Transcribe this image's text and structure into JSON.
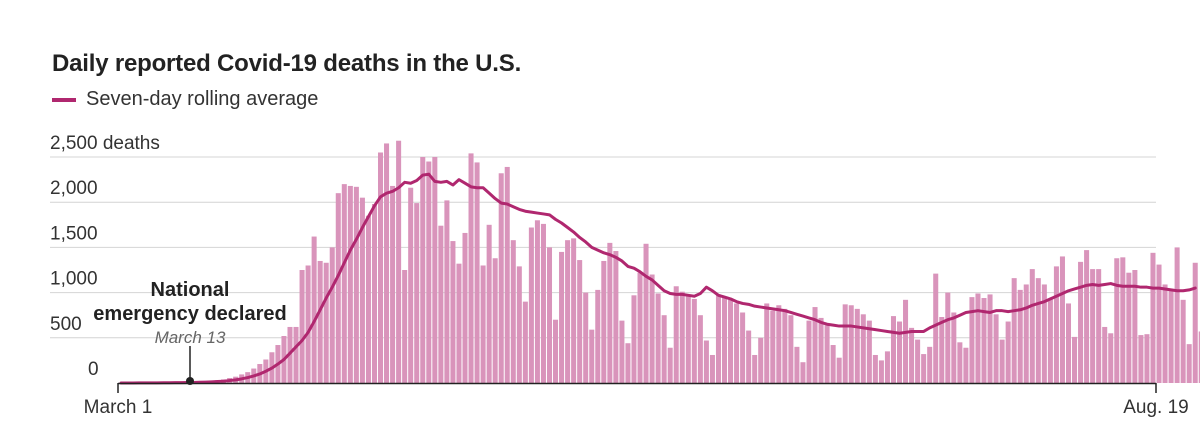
{
  "chart_data": {
    "type": "bar",
    "title": "Daily reported Covid-19 deaths in the U.S.",
    "legend": [
      {
        "name": "Seven-day rolling average",
        "color": "#b0276f"
      }
    ],
    "y_unit": "deaths",
    "ylim": [
      0,
      2500
    ],
    "y_ticks": [
      {
        "value": 2500,
        "label": "2,500 deaths"
      },
      {
        "value": 2000,
        "label": "2,000"
      },
      {
        "value": 1500,
        "label": "1,500"
      },
      {
        "value": 1000,
        "label": "1,000"
      },
      {
        "value": 500,
        "label": "500"
      },
      {
        "value": 0,
        "label": "0"
      }
    ],
    "x_range": [
      "2020-03-01",
      "2020-08-19"
    ],
    "x_ticks": [
      {
        "date": "2020-03-01",
        "label": "March 1"
      },
      {
        "date": "2020-08-19",
        "label": "Aug. 19"
      }
    ],
    "annotation": {
      "date": "2020-03-13",
      "title_lines": [
        "National",
        "emergency declared"
      ],
      "subtitle": "March 13"
    },
    "bar_color": "#d994bb",
    "line_color": "#b0276f",
    "grid": true,
    "series": [
      {
        "name": "Daily deaths",
        "kind": "bar",
        "start_date": "2020-03-01",
        "values": [
          0,
          0,
          1,
          2,
          2,
          3,
          3,
          4,
          4,
          5,
          6,
          8,
          10,
          12,
          18,
          22,
          30,
          40,
          55,
          70,
          95,
          120,
          160,
          210,
          260,
          340,
          420,
          520,
          620,
          620,
          1250,
          1300,
          1620,
          1350,
          1330,
          1500,
          2100,
          2200,
          2180,
          2170,
          2050,
          1850,
          1980,
          2550,
          2650,
          2180,
          2680,
          1250,
          2160,
          1990,
          2500,
          2450,
          2500,
          1740,
          2020,
          1570,
          1320,
          1660,
          2540,
          2440,
          1300,
          1750,
          1380,
          2320,
          2390,
          1580,
          1290,
          900,
          1720,
          1800,
          1760,
          1500,
          700,
          1450,
          1580,
          1600,
          1360,
          1000,
          590,
          1030,
          1350,
          1550,
          1460,
          690,
          440,
          970,
          1220,
          1540,
          1200,
          990,
          750,
          390,
          1070,
          1010,
          960,
          930,
          750,
          470,
          310,
          980,
          940,
          920,
          880,
          780,
          580,
          310,
          500,
          880,
          800,
          860,
          820,
          750,
          400,
          230,
          690,
          840,
          720,
          640,
          420,
          280,
          870,
          860,
          820,
          760,
          690,
          310,
          250,
          350,
          740,
          680,
          920,
          610,
          480,
          320,
          400,
          1210,
          730,
          1000,
          780,
          450,
          390,
          950,
          990,
          940,
          980,
          760,
          480,
          680,
          1160,
          1030,
          1090,
          1260,
          1160,
          1090,
          930,
          1290,
          1400,
          880,
          510,
          1340,
          1470,
          1260,
          1260,
          620,
          550,
          1380,
          1390,
          1220,
          1250,
          530,
          540,
          1440,
          1310,
          1090,
          1030,
          1500,
          920,
          430,
          1330,
          570,
          450,
          1320,
          200
        ]
      },
      {
        "name": "Seven-day rolling average",
        "kind": "line",
        "start_date": "2020-03-01",
        "values": [
          0,
          0,
          0,
          1,
          1,
          2,
          2,
          3,
          3,
          4,
          4,
          5,
          6,
          8,
          10,
          13,
          16,
          20,
          27,
          35,
          46,
          60,
          78,
          100,
          130,
          165,
          210,
          260,
          330,
          400,
          470,
          560,
          680,
          810,
          940,
          1060,
          1190,
          1330,
          1470,
          1590,
          1720,
          1840,
          1960,
          2060,
          2100,
          2120,
          2160,
          2220,
          2210,
          2240,
          2300,
          2310,
          2230,
          2220,
          2230,
          2190,
          2250,
          2210,
          2170,
          2160,
          2160,
          2100,
          2040,
          1990,
          1980,
          1950,
          1920,
          1900,
          1890,
          1880,
          1870,
          1860,
          1810,
          1770,
          1720,
          1670,
          1610,
          1560,
          1500,
          1470,
          1440,
          1420,
          1390,
          1350,
          1290,
          1270,
          1230,
          1180,
          1140,
          1080,
          1020,
          990,
          980,
          980,
          970,
          960,
          990,
          1060,
          1020,
          970,
          950,
          930,
          900,
          880,
          870,
          850,
          840,
          830,
          820,
          810,
          800,
          780,
          760,
          740,
          720,
          700,
          670,
          650,
          640,
          630,
          630,
          630,
          620,
          610,
          600,
          590,
          580,
          570,
          560,
          550,
          560,
          570,
          570,
          570,
          610,
          640,
          670,
          700,
          720,
          750,
          780,
          790,
          800,
          790,
          780,
          800,
          800,
          790,
          800,
          810,
          830,
          860,
          880,
          900,
          930,
          960,
          990,
          1020,
          1040,
          1060,
          1080,
          1090,
          1080,
          1090,
          1100,
          1080,
          1070,
          1070,
          1070,
          1060,
          1060,
          1050,
          1050,
          1040,
          1030,
          1020,
          1020,
          1030,
          1050
        ]
      }
    ]
  }
}
